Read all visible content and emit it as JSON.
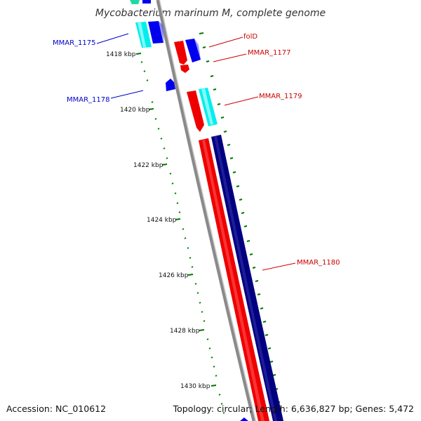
{
  "title": "Mycobacterium marinum M, complete genome",
  "footer": {
    "accession": "Accession: NC_010612",
    "summary": "Topology: circular; Length: 6,636,827 bp; Genes: 5,472"
  },
  "ticks": [
    "1418 kbp",
    "1420 kbp",
    "1422 kbp",
    "1424 kbp",
    "1426 kbp",
    "1428 kbp",
    "1430 kbp"
  ],
  "genes": [
    {
      "label": "MMAR_1175",
      "color": "#0000cc"
    },
    {
      "label": "folD",
      "color": "#cc0000"
    },
    {
      "label": "MMAR_1177",
      "color": "#cc0000"
    },
    {
      "label": "MMAR_1178",
      "color": "#0000cc"
    },
    {
      "label": "MMAR_1179",
      "color": "#cc0000"
    },
    {
      "label": "MMAR_1180",
      "color": "#cc0000"
    }
  ],
  "colors": {
    "backbone": "#888888",
    "forward": "#ff0000",
    "reverse_blue": "#0000ee",
    "reverse_navy": "#000080",
    "cyan": "#00eeee",
    "tick": "#007700"
  }
}
